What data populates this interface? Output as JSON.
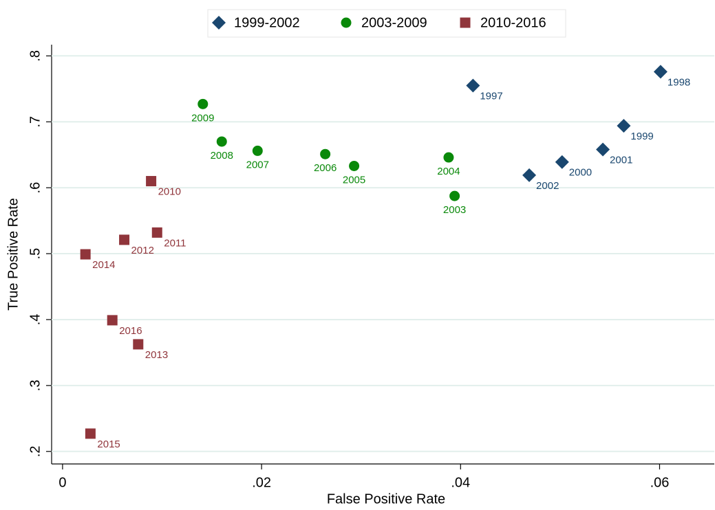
{
  "chart_data": {
    "type": "scatter",
    "xlabel": "False Positive Rate",
    "ylabel": "True Positive Rate",
    "xlim": [
      -0.0011,
      0.0655
    ],
    "ylim": [
      0.181,
      0.817
    ],
    "xticks": [
      0,
      {
        "value": 0.02,
        "label": ".02"
      },
      {
        "value": 0.04,
        "label": ".04"
      },
      {
        "value": 0.06,
        "label": ".06"
      }
    ],
    "yticks": [
      {
        "value": 0.2,
        "label": ".2"
      },
      {
        "value": 0.3,
        "label": ".3"
      },
      {
        "value": 0.4,
        "label": ".4"
      },
      {
        "value": 0.5,
        "label": ".5"
      },
      {
        "value": 0.6,
        "label": ".6"
      },
      {
        "value": 0.7,
        "label": ".7"
      },
      {
        "value": 0.8,
        "label": ".8"
      }
    ],
    "grid": true,
    "legend": "top",
    "series": [
      {
        "name": "1999-2002",
        "color": "#1a476f",
        "marker": "diamond",
        "labels": [
          "1997",
          "1998",
          "1999",
          "2001",
          "2000",
          "2002"
        ],
        "x": [
          0.04125,
          0.0601,
          0.0564,
          0.0543,
          0.0502,
          0.0469
        ],
        "values": [
          0.755,
          0.776,
          0.694,
          0.658,
          0.639,
          0.619
        ]
      },
      {
        "name": "2003-2009",
        "color": "#0a890a",
        "marker": "circle",
        "labels": [
          "2009",
          "2008",
          "2007",
          "2006",
          "2005",
          "2004",
          "2003"
        ],
        "x": [
          0.0141,
          0.016,
          0.0196,
          0.0264,
          0.0293,
          0.0388,
          0.0394
        ],
        "values": [
          0.727,
          0.67,
          0.656,
          0.651,
          0.633,
          0.646,
          0.5875
        ]
      },
      {
        "name": "2010-2016",
        "color": "#90353b",
        "marker": "square",
        "labels": [
          "2010",
          "2011",
          "2012",
          "2014",
          "2016",
          "2013",
          "2015"
        ],
        "x": [
          0.0089,
          0.0095,
          0.0062,
          0.0023,
          0.005,
          0.0076,
          0.0028
        ],
        "values": [
          0.61,
          0.532,
          0.521,
          0.499,
          0.399,
          0.3625,
          0.227
        ]
      }
    ]
  }
}
